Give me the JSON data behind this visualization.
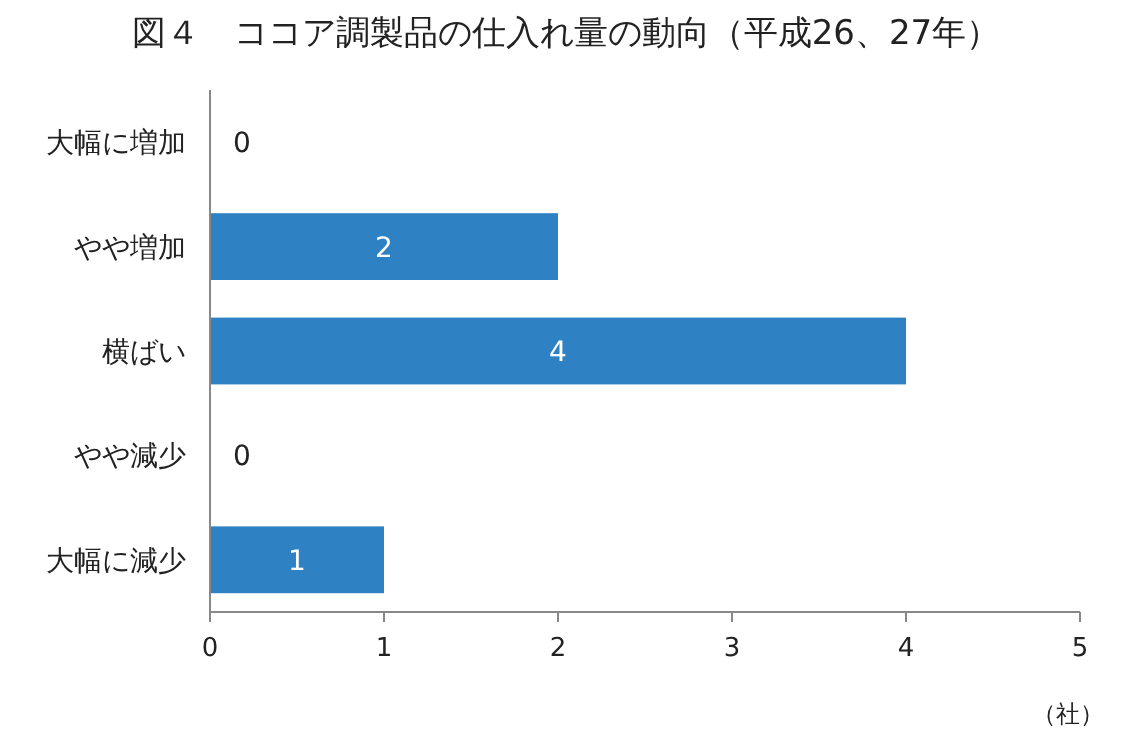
{
  "chart_data": {
    "type": "bar",
    "orientation": "horizontal",
    "title": "図４　ココア調製品の仕入れ量の動向（平成26、27年）",
    "categories": [
      "大幅に増加",
      "やや増加",
      "横ばい",
      "やや減少",
      "大幅に減少"
    ],
    "values": [
      0,
      2,
      4,
      0,
      1
    ],
    "color": "#2e82c4",
    "xlim": [
      0,
      5
    ],
    "xticks": [
      0,
      1,
      2,
      3,
      4,
      5
    ],
    "xlabel": "（社）",
    "data_labels": true,
    "grid": false
  }
}
